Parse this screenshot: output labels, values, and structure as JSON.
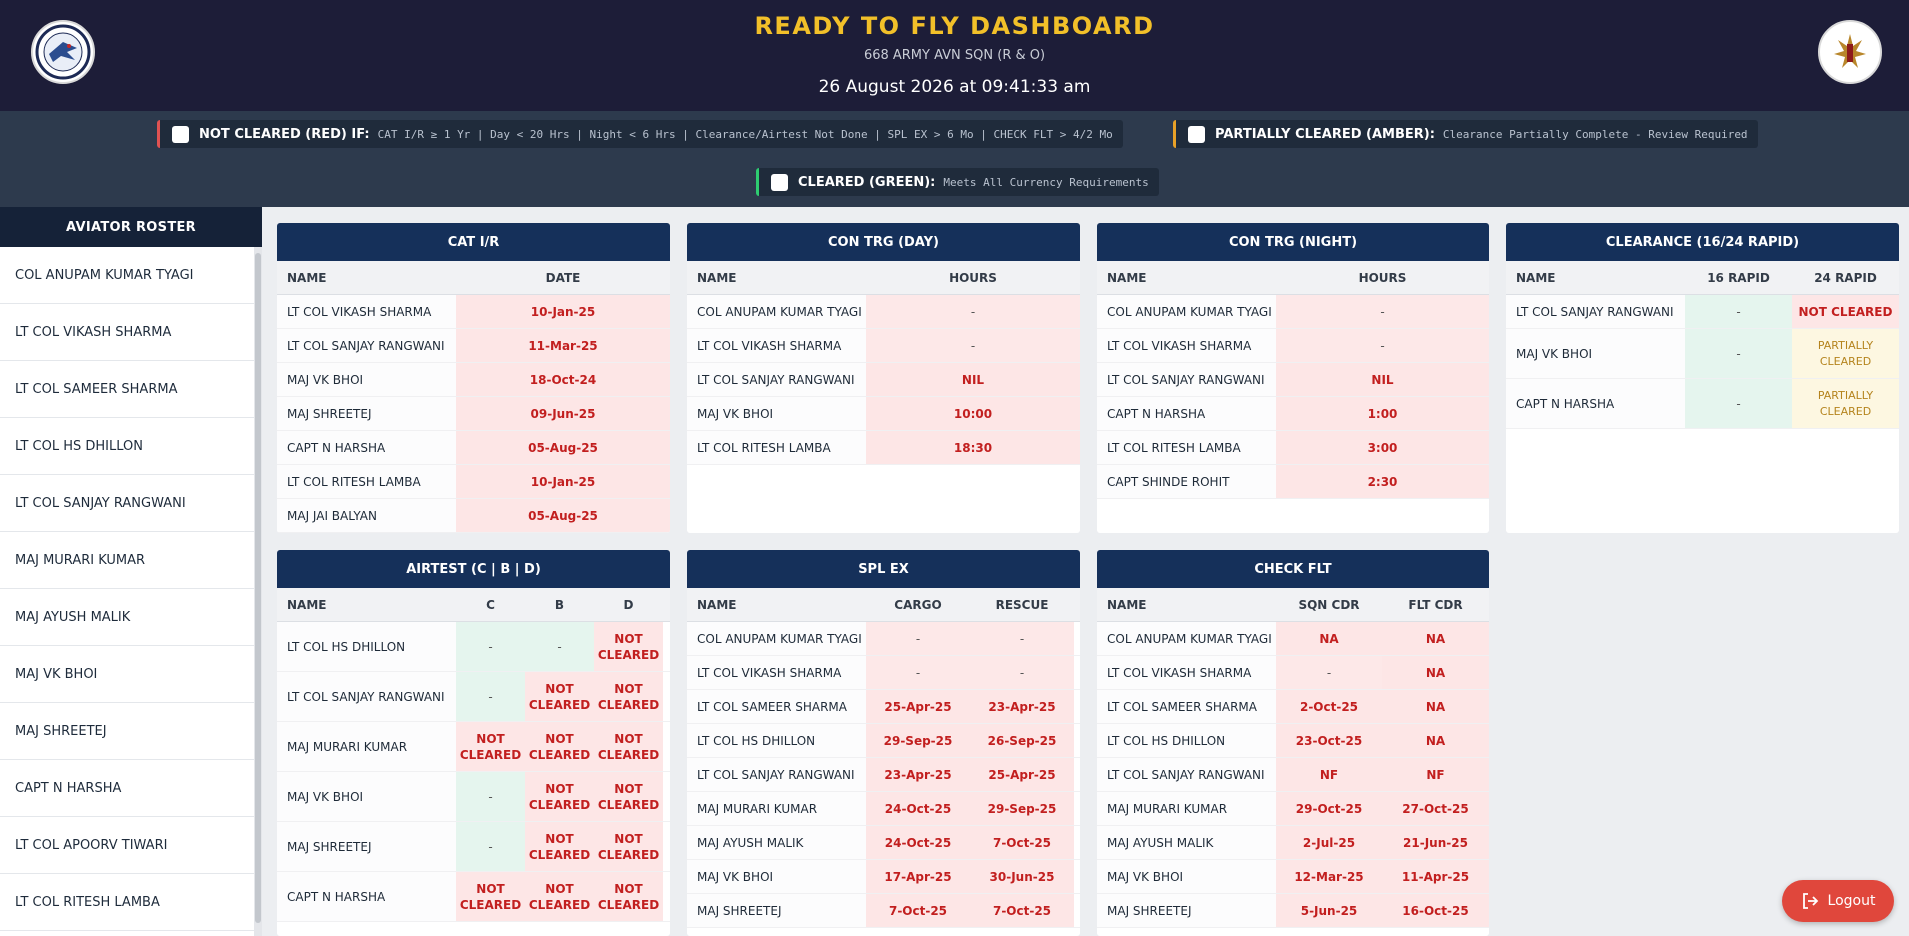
{
  "header": {
    "title": "READY TO FLY DASHBOARD",
    "subtitle": "668 ARMY AVN SQN (R & O)",
    "datetime": "26 August 2026 at 09:41:33 am"
  },
  "legend": {
    "red": {
      "label": "NOT CLEARED (RED) IF:",
      "desc": "CAT I/R ≥ 1 Yr | Day < 20 Hrs | Night < 6 Hrs | Clearance/Airtest Not Done | SPL EX > 6 Mo | CHECK FLT > 4/2 Mo",
      "color": "#e05252"
    },
    "amber": {
      "label": "PARTIALLY CLEARED (AMBER):",
      "desc": "Clearance Partially Complete - Review Required",
      "color": "#e8a128"
    },
    "green": {
      "label": "CLEARED (GREEN):",
      "desc": "Meets All Currency Requirements",
      "color": "#2ecc71"
    }
  },
  "sidebar": {
    "title": "AVIATOR ROSTER",
    "items": [
      "COL ANUPAM KUMAR TYAGI",
      "LT COL VIKASH SHARMA",
      "LT COL SAMEER SHARMA",
      "LT COL HS DHILLON",
      "LT COL SANJAY RANGWANI",
      "MAJ MURARI KUMAR",
      "MAJ AYUSH MALIK",
      "MAJ VK BHOI",
      "MAJ SHREETEJ",
      "CAPT N HARSHA",
      "LT COL APOORV TIWARI",
      "LT COL RITESH LAMBA"
    ]
  },
  "cards": {
    "cat": {
      "title": "CAT I/R",
      "cols": [
        "NAME",
        "DATE"
      ],
      "rows": [
        [
          "LT COL VIKASH SHARMA",
          "10-Jan-25"
        ],
        [
          "LT COL SANJAY RANGWANI",
          "11-Mar-25"
        ],
        [
          "MAJ VK BHOI",
          "18-Oct-24"
        ],
        [
          "MAJ SHREETEJ",
          "09-Jun-25"
        ],
        [
          "CAPT N HARSHA",
          "05-Aug-25"
        ],
        [
          "LT COL RITESH LAMBA",
          "10-Jan-25"
        ],
        [
          "MAJ JAI BALYAN",
          "05-Aug-25"
        ]
      ]
    },
    "day": {
      "title": "CON TRG (DAY)",
      "cols": [
        "NAME",
        "HOURS"
      ],
      "rows": [
        [
          "COL ANUPAM KUMAR TYAGI",
          "-"
        ],
        [
          "LT COL VIKASH SHARMA",
          "-"
        ],
        [
          "LT COL SANJAY RANGWANI",
          "NIL"
        ],
        [
          "MAJ VK BHOI",
          "10:00"
        ],
        [
          "LT COL RITESH LAMBA",
          "18:30"
        ]
      ]
    },
    "night": {
      "title": "CON TRG (NIGHT)",
      "cols": [
        "NAME",
        "HOURS"
      ],
      "rows": [
        [
          "COL ANUPAM KUMAR TYAGI",
          "-"
        ],
        [
          "LT COL VIKASH SHARMA",
          "-"
        ],
        [
          "LT COL SANJAY RANGWANI",
          "NIL"
        ],
        [
          "CAPT N HARSHA",
          "1:00"
        ],
        [
          "LT COL RITESH LAMBA",
          "3:00"
        ],
        [
          "CAPT SHINDE ROHIT",
          "2:30"
        ]
      ]
    },
    "clearance": {
      "title": "CLEARANCE (16/24 RAPID)",
      "cols": [
        "NAME",
        "16 RAPID",
        "24 RAPID"
      ],
      "rows": [
        [
          "LT COL SANJAY RANGWANI",
          "-",
          "NOT CLEARED"
        ],
        [
          "MAJ VK BHOI",
          "-",
          "PARTIALLY CLEARED"
        ],
        [
          "CAPT N HARSHA",
          "-",
          "PARTIALLY CLEARED"
        ]
      ]
    },
    "airtest": {
      "title": "AIRTEST (C | B | D)",
      "cols": [
        "NAME",
        "C",
        "B",
        "D"
      ],
      "rows": [
        [
          "LT COL HS DHILLON",
          "-",
          "-",
          "NOT CLEARED"
        ],
        [
          "LT COL SANJAY RANGWANI",
          "-",
          "NOT CLEARED",
          "NOT CLEARED"
        ],
        [
          "MAJ MURARI KUMAR",
          "NOT CLEARED",
          "NOT CLEARED",
          "NOT CLEARED"
        ],
        [
          "MAJ VK BHOI",
          "-",
          "NOT CLEARED",
          "NOT CLEARED"
        ],
        [
          "MAJ SHREETEJ",
          "-",
          "NOT CLEARED",
          "NOT CLEARED"
        ],
        [
          "CAPT N HARSHA",
          "NOT CLEARED",
          "NOT CLEARED",
          "NOT CLEARED"
        ]
      ]
    },
    "splex": {
      "title": "SPL EX",
      "cols": [
        "NAME",
        "CARGO",
        "RESCUE"
      ],
      "rows": [
        [
          "COL ANUPAM KUMAR TYAGI",
          "-",
          "-"
        ],
        [
          "LT COL VIKASH SHARMA",
          "-",
          "-"
        ],
        [
          "LT COL SAMEER SHARMA",
          "25-Apr-25",
          "23-Apr-25"
        ],
        [
          "LT COL HS DHILLON",
          "29-Sep-25",
          "26-Sep-25"
        ],
        [
          "LT COL SANJAY RANGWANI",
          "23-Apr-25",
          "25-Apr-25"
        ],
        [
          "MAJ MURARI KUMAR",
          "24-Oct-25",
          "29-Sep-25"
        ],
        [
          "MAJ AYUSH MALIK",
          "24-Oct-25",
          "7-Oct-25"
        ],
        [
          "MAJ VK BHOI",
          "17-Apr-25",
          "30-Jun-25"
        ],
        [
          "MAJ SHREETEJ",
          "7-Oct-25",
          "7-Oct-25"
        ]
      ]
    },
    "check": {
      "title": "CHECK FLT",
      "cols": [
        "NAME",
        "SQN CDR",
        "FLT CDR"
      ],
      "rows": [
        [
          "COL ANUPAM KUMAR TYAGI",
          "NA",
          "NA"
        ],
        [
          "LT COL VIKASH SHARMA",
          "-",
          "NA"
        ],
        [
          "LT COL SAMEER SHARMA",
          "2-Oct-25",
          "NA"
        ],
        [
          "LT COL HS DHILLON",
          "23-Oct-25",
          "NA"
        ],
        [
          "LT COL SANJAY RANGWANI",
          "NF",
          "NF"
        ],
        [
          "MAJ MURARI KUMAR",
          "29-Oct-25",
          "27-Oct-25"
        ],
        [
          "MAJ AYUSH MALIK",
          "2-Jul-25",
          "21-Jun-25"
        ],
        [
          "MAJ VK BHOI",
          "12-Mar-25",
          "11-Apr-25"
        ],
        [
          "MAJ SHREETEJ",
          "5-Jun-25",
          "16-Oct-25"
        ]
      ]
    }
  },
  "logout": {
    "label": "Logout"
  }
}
